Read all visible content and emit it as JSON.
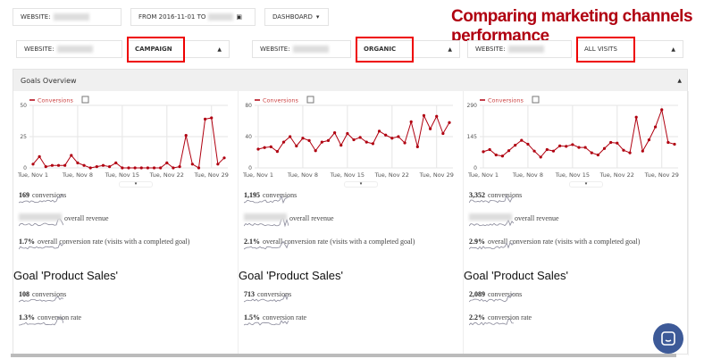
{
  "topbar": {
    "website_label": "WEBSITE:",
    "date_label": "FROM 2016-11-01 TO",
    "dashboard_label": "DASHBOARD"
  },
  "annotation": "Comparing marketing channels performance",
  "filters": [
    {
      "website_label": "WEBSITE:",
      "segment": "CAMPAIGN"
    },
    {
      "website_label": "WEBSITE:",
      "segment": "ORGANIC"
    },
    {
      "website_label": "WEBSITE:",
      "segment": "ALL VISITS"
    }
  ],
  "panel_title": "Goals Overview",
  "accent": "#b00010",
  "chart_data": [
    {
      "type": "line",
      "legend": "Conversions",
      "ylim": [
        0,
        50
      ],
      "yticks": [
        "0",
        "25",
        "50"
      ],
      "xticks": [
        "Tue, Nov 1",
        "Tue, Nov 8",
        "Tue, Nov 15",
        "Tue, Nov 22",
        "Tue, Nov 29"
      ],
      "values": [
        3,
        9,
        1,
        2,
        2,
        2,
        10,
        4,
        2,
        0,
        1,
        2,
        1,
        4,
        0,
        0,
        0,
        0,
        0,
        0,
        0,
        4,
        0,
        1,
        26,
        3,
        0,
        39,
        40,
        3,
        8
      ]
    },
    {
      "type": "line",
      "legend": "Conversions",
      "ylim": [
        0,
        80
      ],
      "yticks": [
        "0",
        "40",
        "80"
      ],
      "xticks": [
        "Tue, Nov 1",
        "Tue, Nov 8",
        "Tue, Nov 15",
        "Tue, Nov 22",
        "Tue, Nov 29"
      ],
      "values": [
        24,
        26,
        27,
        21,
        33,
        40,
        28,
        38,
        35,
        22,
        33,
        35,
        45,
        29,
        44,
        36,
        39,
        33,
        31,
        47,
        42,
        38,
        40,
        32,
        59,
        27,
        67,
        50,
        66,
        44,
        58
      ]
    },
    {
      "type": "line",
      "legend": "Conversions",
      "ylim": [
        0,
        290
      ],
      "yticks": [
        "0",
        "145",
        "290"
      ],
      "xticks": [
        "Tue, Nov 1",
        "Tue, Nov 8",
        "Tue, Nov 15",
        "Tue, Nov 22",
        "Tue, Nov 29"
      ],
      "values": [
        75,
        85,
        60,
        55,
        80,
        105,
        128,
        110,
        78,
        50,
        85,
        78,
        102,
        100,
        108,
        95,
        95,
        70,
        60,
        90,
        118,
        115,
        82,
        70,
        235,
        78,
        130,
        190,
        270,
        118,
        110
      ]
    }
  ],
  "columns": [
    {
      "conversions": "169",
      "conversions_label": "conversions",
      "revenue_label": "overall revenue",
      "rate": "1.7%",
      "rate_label": "overall conversion rate (visits with a completed goal)",
      "goal_title": "Goal 'Product Sales'",
      "goal_conversions": "108",
      "goal_conv_label": "conversions",
      "goal_rate": "1.3%",
      "goal_rate_label": "conversion rate"
    },
    {
      "conversions": "1,195",
      "conversions_label": "conversions",
      "revenue_label": "overall revenue",
      "rate": "2.1%",
      "rate_label": "overall conversion rate (visits with a completed goal)",
      "goal_title": "Goal 'Product Sales'",
      "goal_conversions": "713",
      "goal_conv_label": "conversions",
      "goal_rate": "1.5%",
      "goal_rate_label": "conversion rate"
    },
    {
      "conversions": "3,352",
      "conversions_label": "conversions",
      "revenue_label": "overall revenue",
      "rate": "2.9%",
      "rate_label": "overall conversion rate (visits with a completed goal)",
      "goal_title": "Goal 'Product Sales'",
      "goal_conversions": "2,089",
      "goal_conv_label": "conversions",
      "goal_rate": "2.2%",
      "goal_rate_label": "conversion rate"
    }
  ]
}
